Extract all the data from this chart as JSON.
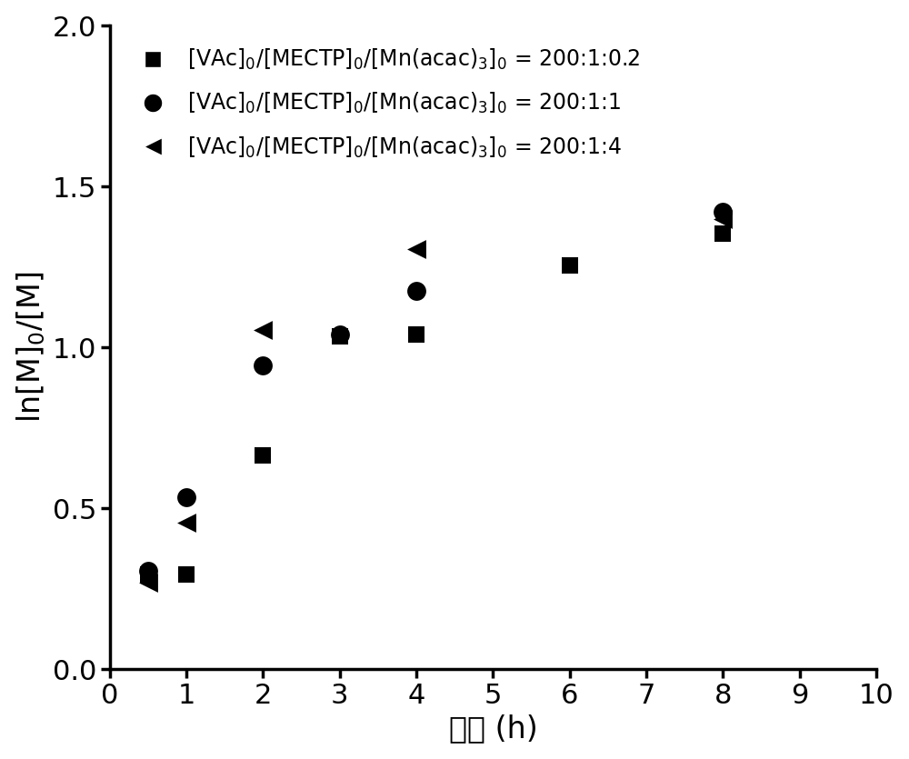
{
  "series": [
    {
      "label": "[VAc]$_0$/[MECTP]$_0$/[Mn(acac)$_3$]$_0$ = 200:1:0.2",
      "x": [
        0.5,
        1.0,
        2.0,
        3.0,
        4.0,
        6.0,
        8.0
      ],
      "y": [
        0.295,
        0.295,
        0.665,
        1.035,
        1.04,
        1.255,
        1.355
      ],
      "marker": "s",
      "color": "black",
      "markersize": 13
    },
    {
      "label": "[VAc]$_0$/[MECTP]$_0$/[Mn(acac)$_3$]$_0$ = 200:1:1",
      "x": [
        0.5,
        1.0,
        2.0,
        3.0,
        4.0,
        8.0
      ],
      "y": [
        0.305,
        0.535,
        0.945,
        1.04,
        1.175,
        1.42
      ],
      "marker": "o",
      "color": "black",
      "markersize": 15
    },
    {
      "label": "[VAc]$_0$/[MECTP]$_0$/[Mn(acac)$_3$]$_0$ = 200:1:4",
      "x": [
        0.5,
        1.0,
        2.0,
        4.0,
        8.0
      ],
      "y": [
        0.27,
        0.455,
        1.055,
        1.305,
        1.4
      ],
      "marker": "<",
      "color": "black",
      "markersize": 15
    }
  ],
  "xlabel_zh": "时间",
  "xlabel_unit": " (h)",
  "ylabel": "ln[M]$_0$/[M]",
  "xlim": [
    0,
    10
  ],
  "ylim": [
    0.0,
    2.0
  ],
  "xticks": [
    0,
    1,
    2,
    3,
    4,
    5,
    6,
    7,
    8,
    9,
    10
  ],
  "yticks": [
    0.0,
    0.5,
    1.0,
    1.5,
    2.0
  ],
  "legend_labels": [
    "[VAc]$_0$/[MECTP]$_0$/[Mn(acac)$_3$]$_0$ = 200:1:0.2",
    "[VAc]$_0$/[MECTP]$_0$/[Mn(acac)$_3$]$_0$ = 200:1:1",
    "[VAc]$_0$/[MECTP]$_0$/[Mn(acac)$_3$]$_0$ = 200:1:4"
  ],
  "legend_markers": [
    "s",
    "o",
    "<"
  ],
  "background_color": "white",
  "label_fontsize": 24,
  "tick_fontsize": 22,
  "legend_fontsize": 17,
  "spine_linewidth": 2.5
}
